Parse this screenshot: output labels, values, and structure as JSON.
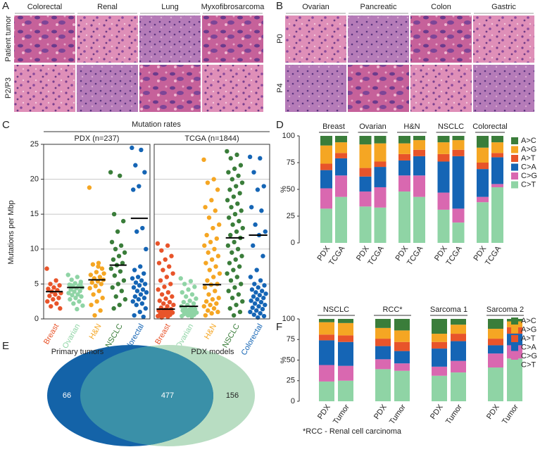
{
  "image_panels": [
    {
      "panel": "A",
      "columns": [
        "Colorectal",
        "Renal",
        "Lung",
        "Myxofibrosarcoma"
      ],
      "rows": [
        "Patient tumor",
        "P2/P3"
      ]
    },
    {
      "panel": "B",
      "columns": [
        "Ovarian",
        "Pancreatic",
        "Colon",
        "Gastric"
      ],
      "rows": [
        "P0",
        "P4"
      ]
    }
  ],
  "chart_data": [
    {
      "panel": "C",
      "type": "strip",
      "title": "Mutation rates",
      "ylabel": "Mutations per Mbp",
      "ylim": [
        0,
        25
      ],
      "yticks": [
        0,
        5,
        10,
        15,
        20,
        25
      ],
      "grid": true,
      "categories": [
        "Breast",
        "Ovarian",
        "H&N",
        "NSCLC",
        "Colorectal"
      ],
      "colors": [
        "#e8542a",
        "#8fd4a5",
        "#f5a623",
        "#3a7d3a",
        "#1565b5"
      ],
      "subplots": [
        {
          "title": "PDX (n=237)",
          "medians": [
            3.9,
            4.5,
            5.6,
            7.7,
            14.4
          ],
          "points": [
            [
              7.2,
              5.5,
              5.0,
              4.8,
              4.5,
              4.3,
              4.1,
              3.9,
              3.7,
              3.5,
              3.3,
              3.0,
              2.8,
              2.5,
              2.2,
              1.8,
              1.5
            ],
            [
              6.3,
              6.0,
              5.6,
              5.3,
              5.1,
              4.9,
              4.7,
              4.6,
              4.5,
              4.4,
              4.2,
              4.0,
              3.9,
              3.7,
              3.5,
              3.4,
              3.2,
              3.0,
              2.8,
              2.5,
              2.2,
              1.9,
              1.4,
              4.8,
              5.0
            ],
            [
              18.8,
              8.0,
              7.8,
              7.2,
              6.7,
              6.3,
              6.0,
              5.8,
              5.6,
              5.4,
              5.2,
              5.0,
              4.7,
              4.4,
              4.0,
              3.5,
              3.0,
              2.5,
              2.0,
              1.2,
              0.5,
              6.5,
              7.5
            ],
            [
              21,
              20.5,
              15,
              14,
              12.5,
              11,
              10.5,
              10,
              9.5,
              9,
              8.5,
              8,
              7.7,
              7.2,
              6.8,
              6.2,
              5.5,
              5.0,
              4.5,
              4.0,
              3.2,
              2.8,
              2.0,
              1.5
            ],
            [
              24.5,
              24.2,
              22,
              21,
              19,
              18.5,
              13,
              12.5,
              10,
              7.5,
              7,
              6.5,
              6,
              5.8,
              5.5,
              5.2,
              5,
              4.8,
              4.5,
              4.2,
              4,
              3.8,
              3.5,
              3.2,
              3,
              2.8,
              2.5,
              2.2,
              2,
              1.5,
              1,
              0.5,
              0.3
            ]
          ]
        },
        {
          "title": "TCGA (n=1844)",
          "medians": [
            1.4,
            1.8,
            4.9,
            11.6,
            12.0
          ],
          "points": [
            [
              10.8,
              10.5,
              9.8,
              9,
              8.5,
              8,
              7.5,
              7,
              6.5,
              6,
              5.5,
              5,
              4.6,
              4.2,
              3.8,
              3.5,
              3.2,
              2.9,
              2.6,
              2.4,
              2.2,
              2,
              1.8,
              1.6,
              1.4,
              1.3,
              1.2,
              1.1,
              1,
              0.9,
              0.8,
              0.7,
              0.6,
              0.5,
              0.4,
              0.3,
              0.2
            ],
            [
              5.8,
              5.4,
              5,
              4.6,
              4.2,
              3.8,
              3.5,
              3.2,
              2.9,
              2.6,
              2.4,
              2.2,
              2,
              1.8,
              1.6,
              1.5,
              1.4,
              1.3,
              1.2,
              1.1,
              1,
              0.9,
              0.8,
              0.7,
              0.6,
              0.5,
              0.4,
              0.3
            ],
            [
              22.8,
              20,
              19.5,
              18.5,
              17,
              16,
              15.5,
              14.5,
              13.5,
              13,
              12,
              11.5,
              11,
              10.5,
              10,
              9.5,
              9,
              8.5,
              8,
              7.5,
              7,
              6.5,
              6,
              5.5,
              5,
              4.9,
              4.5,
              4,
              3.5,
              3,
              2.8,
              2.5,
              2.2,
              2,
              1.8,
              1.5,
              1.2,
              1,
              0.8,
              0.5
            ],
            [
              24,
              23.5,
              23,
              22,
              21.5,
              21,
              20.5,
              20,
              19.5,
              19,
              18.5,
              18,
              17.5,
              17,
              16.5,
              16,
              15.5,
              15,
              14.5,
              14,
              13.5,
              13,
              12.5,
              12,
              11.6,
              11,
              10.5,
              10,
              9.5,
              9,
              8.5,
              8,
              7.5,
              7,
              6.5,
              6,
              5.5,
              5,
              4.5,
              4,
              3.5,
              3,
              2.5,
              2,
              1.5,
              1,
              0.5
            ],
            [
              23.2,
              23,
              21,
              19,
              18.5,
              16,
              15.5,
              13.5,
              12.5,
              12,
              10.5,
              9,
              7,
              6,
              5.5,
              5,
              4.8,
              4.5,
              4.2,
              4,
              3.8,
              3.6,
              3.4,
              3.2,
              3,
              2.8,
              2.6,
              2.4,
              2.2,
              2,
              1.8,
              1.6,
              1.4,
              1.2,
              1,
              0.8,
              0.6,
              0.4,
              0.2
            ]
          ]
        }
      ]
    },
    {
      "panel": "D",
      "type": "stacked_bar",
      "ylabel": "%",
      "ylim": [
        0,
        100
      ],
      "yticks": [
        0,
        25,
        50,
        75,
        100
      ],
      "groups": [
        "Breast",
        "Ovarian",
        "H&N",
        "NSCLC",
        "Colorectal"
      ],
      "categories": [
        "PDX",
        "TCGA",
        "PDX",
        "TCGA",
        "PDX",
        "TCGA",
        "PDX",
        "TCGA",
        "PDX",
        "TCGA"
      ],
      "series": [
        {
          "name": "A>C",
          "color": "#3a7d3a",
          "values": [
            9,
            6,
            8,
            7,
            7,
            4,
            6,
            4,
            11,
            6
          ]
        },
        {
          "name": "A>G",
          "color": "#f5a623",
          "values": [
            17,
            10,
            22,
            17,
            10,
            9,
            11,
            9,
            14,
            10
          ]
        },
        {
          "name": "A>T",
          "color": "#e8542a",
          "values": [
            6,
            5,
            8,
            5,
            6,
            6,
            7,
            6,
            6,
            4
          ]
        },
        {
          "name": "C>A",
          "color": "#1565b5",
          "values": [
            17,
            16,
            14,
            19,
            14,
            18,
            29,
            49,
            26,
            25
          ]
        },
        {
          "name": "C>G",
          "color": "#d968b0",
          "values": [
            19,
            20,
            14,
            19,
            15,
            20,
            16,
            13,
            5,
            3
          ]
        },
        {
          "name": "C>T",
          "color": "#8fd4a5",
          "values": [
            32,
            43,
            34,
            33,
            48,
            43,
            31,
            19,
            38,
            52
          ]
        }
      ]
    },
    {
      "panel": "E",
      "type": "venn",
      "sets": [
        "Primary tumors",
        "PDX models"
      ],
      "values": [
        66,
        477,
        156
      ],
      "colors": [
        "#1463a8",
        "#b8ddc2"
      ],
      "overlap_color": "#3a90a8"
    },
    {
      "panel": "F",
      "type": "stacked_bar",
      "ylabel": "%",
      "ylim": [
        0,
        100
      ],
      "yticks": [
        0,
        25,
        50,
        75,
        100
      ],
      "groups": [
        "NSCLC",
        "RCC*",
        "Sarcoma 1",
        "Sarcoma 2"
      ],
      "categories": [
        "PDX",
        "Tumor",
        "PDX",
        "Tumor",
        "PDX",
        "Tumor",
        "PDX",
        "Tumor"
      ],
      "footnote": "*RCC - Renal cell carcinoma",
      "series": [
        {
          "name": "A>C",
          "color": "#3a7d3a",
          "values": [
            4,
            5,
            11,
            14,
            18,
            7,
            12,
            3
          ]
        },
        {
          "name": "A>G",
          "color": "#f5a623",
          "values": [
            15,
            15,
            13,
            14,
            10,
            11,
            12,
            7
          ]
        },
        {
          "name": "A>T",
          "color": "#e8542a",
          "values": [
            7,
            8,
            9,
            11,
            8,
            9,
            8,
            8
          ]
        },
        {
          "name": "C>A",
          "color": "#1565b5",
          "values": [
            30,
            29,
            16,
            15,
            22,
            24,
            10,
            14
          ]
        },
        {
          "name": "C>G",
          "color": "#d968b0",
          "values": [
            20,
            18,
            12,
            9,
            11,
            14,
            17,
            16
          ]
        },
        {
          "name": "C>T",
          "color": "#8fd4a5",
          "values": [
            24,
            25,
            39,
            37,
            31,
            35,
            41,
            52
          ]
        }
      ]
    }
  ]
}
